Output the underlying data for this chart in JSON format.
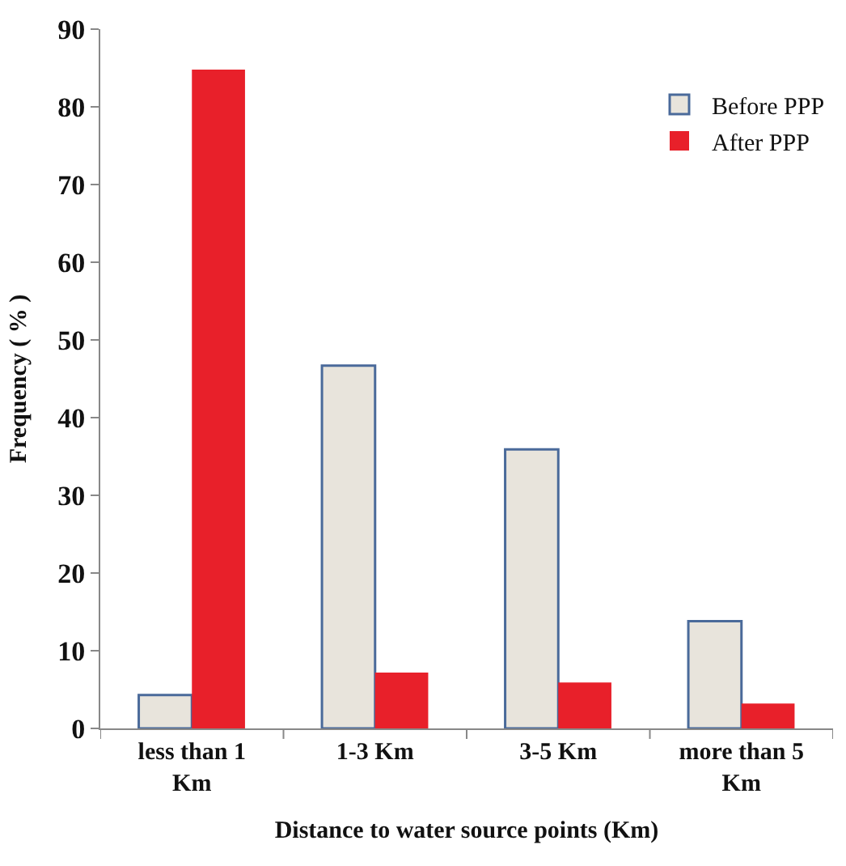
{
  "chart_data": {
    "type": "bar",
    "xlabel": "Distance to water source points (Km)",
    "ylabel": "Frequency ( % )",
    "categories": [
      "less than 1 Km",
      "1-3 Km",
      "3-5 Km",
      "more than 5 Km"
    ],
    "series": [
      {
        "name": "Before PPP",
        "color": "#e8e4dc",
        "values": [
          4.3,
          46.7,
          35.9,
          13.8
        ]
      },
      {
        "name": "After PPP",
        "color": "#e8202a",
        "values": [
          84.8,
          7.2,
          5.9,
          3.2
        ]
      }
    ],
    "ylim": [
      0,
      90
    ],
    "yticks": [
      0,
      10,
      20,
      30,
      40,
      50,
      60,
      70,
      80,
      90
    ],
    "grid": false,
    "legend": "top right"
  }
}
